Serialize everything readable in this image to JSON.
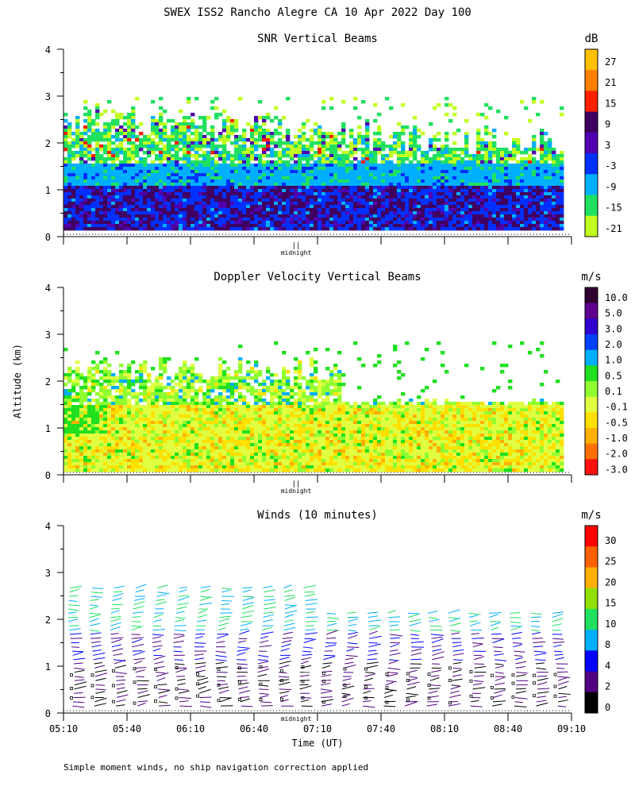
{
  "figure": {
    "title": "SWEX ISS2 Rancho Alegre CA  10 Apr 2022 Day 100",
    "shared_ylabel": "Altitude (km)",
    "shared_xlabel": "Time (UT)",
    "footer": "Simple moment winds, no ship navigation correction applied",
    "midnight_label": "midnight",
    "midnight_marker": "||"
  },
  "chart_data": [
    {
      "type": "heatmap",
      "title": "SNR Vertical Beams",
      "ylabel": "Altitude (km)",
      "ylim": [
        0,
        4
      ],
      "yticks": [
        "0",
        "1",
        "2",
        "3",
        "4"
      ],
      "xlim": [
        "05:10",
        "09:10"
      ],
      "colorbar": {
        "unit": "dB",
        "labels": [
          "27",
          "21",
          "15",
          "9",
          "3",
          "-3",
          "-9",
          "-15",
          "-21"
        ],
        "colors": [
          "#ffc000",
          "#ff8000",
          "#ff2000",
          "#400060",
          "#5000b0",
          "#0030ff",
          "#00b0ff",
          "#20e060",
          "#c0ff20"
        ]
      },
      "description_bands": [
        {
          "alt": [
            0.15,
            1.1
          ],
          "level": "-3 to 9"
        },
        {
          "alt": [
            1.1,
            1.6
          ],
          "level": "-9"
        },
        {
          "alt": [
            1.6,
            2.2
          ],
          "level": "-15"
        },
        {
          "alt": [
            2.2,
            3.0
          ],
          "level": "-21"
        }
      ]
    },
    {
      "type": "heatmap",
      "title": "Doppler Velocity Vertical Beams",
      "ylabel": "Altitude (km)",
      "ylim": [
        0,
        4
      ],
      "yticks": [
        "0",
        "1",
        "2",
        "3",
        "4"
      ],
      "xlim": [
        "05:10",
        "09:10"
      ],
      "colorbar": {
        "unit": "m/s",
        "labels": [
          "10.0",
          "5.0",
          "3.0",
          "2.0",
          "1.0",
          "0.5",
          "0.1",
          "-0.1",
          "-0.5",
          "-1.0",
          "-2.0",
          "-3.0"
        ],
        "colors": [
          "#300030",
          "#600090",
          "#3000d0",
          "#0040ff",
          "#00b0ff",
          "#20e020",
          "#90ff30",
          "#e0ff40",
          "#ffe000",
          "#ffb000",
          "#ff7000",
          "#ff1010"
        ]
      }
    },
    {
      "type": "scatter",
      "title": "Winds (10 minutes)",
      "ylabel": "Altitude (km)",
      "xlabel": "Time (UT)",
      "ylim": [
        0,
        4
      ],
      "yticks": [
        "0",
        "1",
        "2",
        "3",
        "4"
      ],
      "xticks": [
        "05:10",
        "05:40",
        "06:10",
        "06:40",
        "07:10",
        "07:40",
        "08:10",
        "08:40",
        "09:10"
      ],
      "colorbar": {
        "unit": "m/s",
        "labels": [
          "30",
          "25",
          "20",
          "15",
          "10",
          "8",
          "4",
          "2",
          "0"
        ],
        "colors": [
          "#ff0000",
          "#ff6000",
          "#ffb000",
          "#90e000",
          "#20e060",
          "#00b0ff",
          "#0000ff",
          "#500080",
          "#000000"
        ]
      }
    }
  ]
}
